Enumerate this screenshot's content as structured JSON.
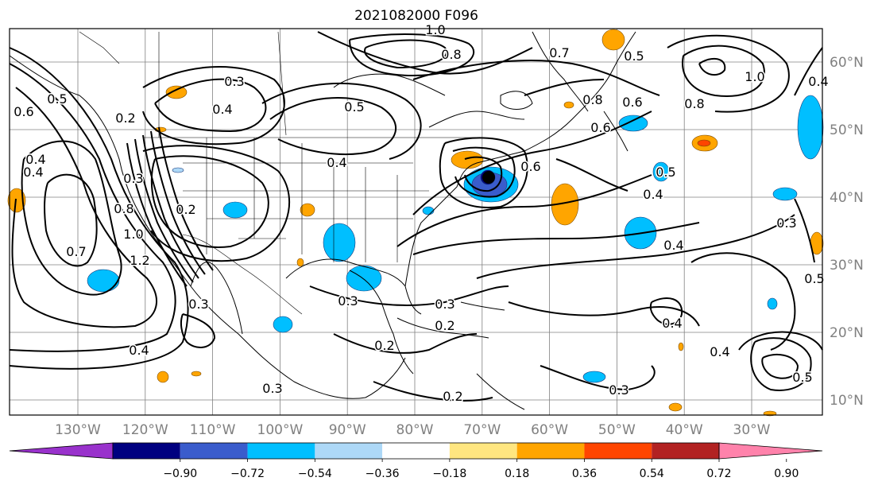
{
  "title": "2021082000 F096",
  "lon_labels": [
    "130°W",
    "120°W",
    "110°W",
    "100°W",
    "90°W",
    "80°W",
    "70°W",
    "60°W",
    "50°W",
    "40°W",
    "30°W"
  ],
  "lat_labels": [
    "60°N",
    "50°N",
    "40°N",
    "30°N",
    "20°N",
    "10°N"
  ],
  "contour_labels": [
    "0.2",
    "0.3",
    "0.4",
    "0.5",
    "1.0",
    "0.8",
    "0.7",
    "0.5",
    "0.8",
    "0.6",
    "0.8",
    "1.0",
    "0.6",
    "0.4",
    "0.5",
    "0.3",
    "0.2",
    "0.6",
    "0.5",
    "0.4",
    "0.4",
    "0.5",
    "0.3",
    "0.3",
    "0.2",
    "0.2",
    "0.2",
    "0.4",
    "0.3",
    "0.3",
    "0.4",
    "0.5",
    "0.4",
    "0.3",
    "0.8",
    "1.0",
    "1.2",
    "0.6",
    "0.4",
    "0.4",
    "0.7",
    "0.3",
    "0.4"
  ],
  "colorbar": {
    "ticks": [
      "−0.90",
      "−0.72",
      "−0.54",
      "−0.36",
      "−0.18",
      "0.18",
      "0.36",
      "0.54",
      "0.72",
      "0.90"
    ],
    "colors": [
      "#9932cc",
      "#000080",
      "#3a5ccc",
      "#00bfff",
      "#add8f7",
      "#ffffff",
      "#ffe680",
      "#ffa500",
      "#ff4500",
      "#b22222",
      "#ff82ab"
    ]
  },
  "colors": {
    "contour": "#000000",
    "grid": "#808080",
    "axis_text": "#808080"
  }
}
